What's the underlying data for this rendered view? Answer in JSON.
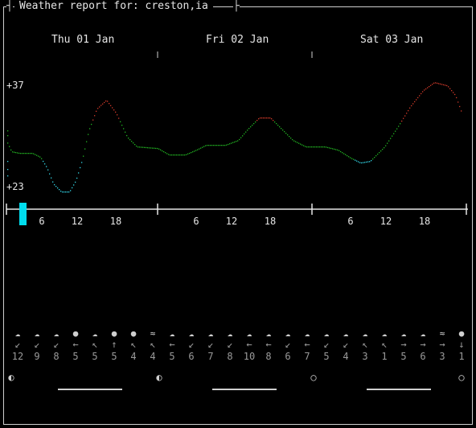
{
  "title": "Weather report for: creston,ia",
  "days": [
    "Thu 01 Jan",
    "Fri 02 Jan",
    "Sat 03 Jan"
  ],
  "temp_max_label": "+37",
  "temp_min_label": "+23",
  "hour_labels": [
    "6",
    "12",
    "18",
    "6",
    "12",
    "18",
    "6",
    "12",
    "18"
  ],
  "colors": {
    "cold": "#33d6e6",
    "mild": "#22b522",
    "warm": "#d23a2a",
    "now_marker": "#00ddee"
  },
  "icons": [
    "cloud-icon",
    "cloud-icon",
    "cloud-icon",
    "sun-icon",
    "cloud-icon",
    "sun-icon",
    "sun-icon",
    "fog-icon",
    "cloud-icon",
    "cloud-icon",
    "cloud-icon",
    "cloud-icon",
    "cloud-icon",
    "cloud-icon",
    "cloud-icon",
    "cloud-icon",
    "cloud-icon",
    "cloud-icon",
    "cloud-icon",
    "cloud-icon",
    "cloud-icon",
    "cloud-icon",
    "fog-icon",
    "sun-icon"
  ],
  "wind_arrows": [
    "↙",
    "↙",
    "↙",
    "←",
    "↖",
    "↑",
    "↖",
    "↖",
    "←",
    "↙",
    "↙",
    "↙",
    "←",
    "←",
    "↙",
    "←",
    "↙",
    "↙",
    "↖",
    "↖",
    "→",
    "→",
    "→",
    "↓"
  ],
  "wind_speeds": [
    "12",
    "9",
    "8",
    "5",
    "5",
    "5",
    "4",
    "4",
    "5",
    "6",
    "7",
    "8",
    "10",
    "8",
    "6",
    "7",
    "5",
    "4",
    "3",
    "1",
    "5",
    "6",
    "3",
    "1"
  ],
  "moon_glyphs": [
    "◐",
    "◐",
    "○",
    "○"
  ]
}
